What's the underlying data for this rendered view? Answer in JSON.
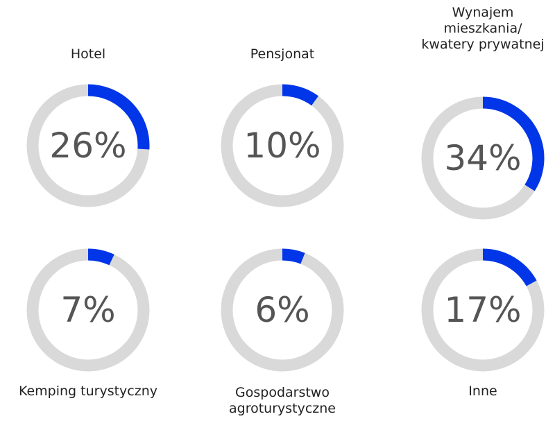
{
  "chart_data": [
    {
      "type": "donut",
      "title": [
        "Hotel"
      ],
      "values": [
        26
      ],
      "value_labels": [
        "26%"
      ],
      "ylim": [
        0,
        100
      ],
      "color": "#0036e8",
      "track_color": "#d9d9d9"
    },
    {
      "type": "donut",
      "title": [
        "Pensjonat"
      ],
      "values": [
        10
      ],
      "value_labels": [
        "10%"
      ],
      "ylim": [
        0,
        100
      ],
      "color": "#0036e8",
      "track_color": "#d9d9d9"
    },
    {
      "type": "donut",
      "title": [
        "Wynajem",
        "mieszkania/",
        "kwatery prywatnej"
      ],
      "values": [
        34
      ],
      "value_labels": [
        "34%"
      ],
      "ylim": [
        0,
        100
      ],
      "color": "#0036e8",
      "track_color": "#d9d9d9"
    },
    {
      "type": "donut",
      "title": [
        "Kemping turystyczny"
      ],
      "values": [
        7
      ],
      "value_labels": [
        "7%"
      ],
      "ylim": [
        0,
        100
      ],
      "color": "#0036e8",
      "track_color": "#d9d9d9"
    },
    {
      "type": "donut",
      "title": [
        "Gospodarstwo",
        "agroturystyczne"
      ],
      "values": [
        6
      ],
      "value_labels": [
        "6%"
      ],
      "ylim": [
        0,
        100
      ],
      "color": "#0036e8",
      "track_color": "#d9d9d9"
    },
    {
      "type": "donut",
      "title": [
        "Inne"
      ],
      "values": [
        17
      ],
      "value_labels": [
        "17%"
      ],
      "ylim": [
        0,
        100
      ],
      "color": "#0036e8",
      "track_color": "#d9d9d9"
    }
  ]
}
